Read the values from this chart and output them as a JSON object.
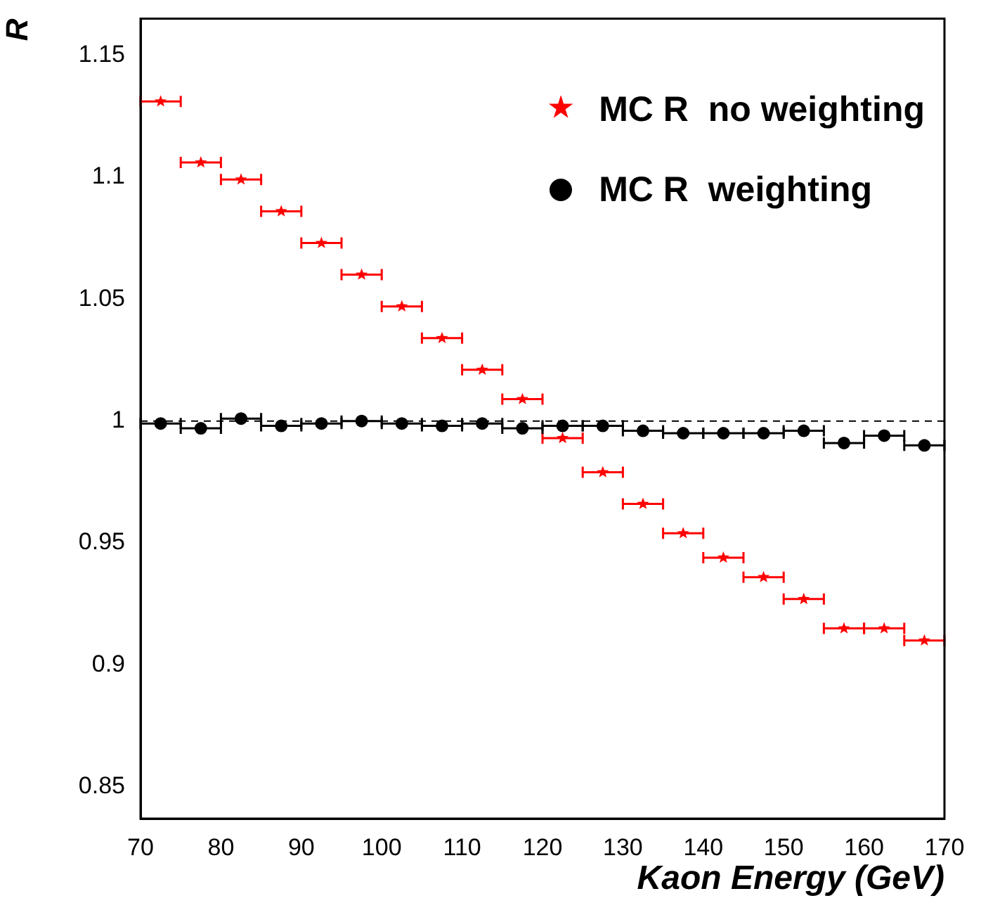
{
  "chart_data": {
    "type": "scatter",
    "xlabel": "Kaon Energy (GeV)",
    "ylabel": "R",
    "x": [
      72.5,
      77.5,
      82.5,
      87.5,
      92.5,
      97.5,
      102.5,
      107.5,
      112.5,
      117.5,
      122.5,
      127.5,
      132.5,
      137.5,
      142.5,
      147.5,
      152.5,
      157.5,
      162.5,
      167.5
    ],
    "series": [
      {
        "name": "MC R  no weighting",
        "color": "#ff0000",
        "marker": "star",
        "values": [
          1.131,
          1.106,
          1.099,
          1.086,
          1.073,
          1.06,
          1.047,
          1.034,
          1.021,
          1.009,
          0.993,
          0.979,
          0.966,
          0.954,
          0.944,
          0.936,
          0.927,
          0.915,
          0.915,
          0.91
        ],
        "xerrors": [
          2.5,
          2.5,
          2.5,
          2.5,
          2.5,
          2.5,
          2.5,
          2.5,
          2.5,
          2.5,
          2.5,
          2.5,
          2.5,
          2.5,
          2.5,
          2.5,
          2.5,
          2.5,
          2.5,
          2.5
        ]
      },
      {
        "name": "MC R  weighting",
        "color": "#000000",
        "marker": "circle",
        "values": [
          0.999,
          0.997,
          1.001,
          0.998,
          0.999,
          1.0,
          0.999,
          0.998,
          0.999,
          0.997,
          0.998,
          0.998,
          0.996,
          0.995,
          0.995,
          0.995,
          0.996,
          0.991,
          0.994,
          0.99
        ],
        "xerrors": [
          2.5,
          2.5,
          2.5,
          2.5,
          2.5,
          2.5,
          2.5,
          2.5,
          2.5,
          2.5,
          2.5,
          2.5,
          2.5,
          2.5,
          2.5,
          2.5,
          2.5,
          2.5,
          2.5,
          2.5
        ]
      }
    ],
    "xlim": [
      70,
      170
    ],
    "xticks": [
      70,
      80,
      90,
      100,
      110,
      120,
      130,
      140,
      150,
      160,
      170
    ],
    "ylim": [
      0.837,
      1.165
    ],
    "yticks": [
      0.85,
      0.9,
      0.95,
      1,
      1.05,
      1.1,
      1.15
    ],
    "ref_lines": [
      {
        "axis": "y",
        "value": 1,
        "line_style": "dashed",
        "color": "#000000"
      }
    ],
    "grid": false,
    "legend": "top right"
  }
}
